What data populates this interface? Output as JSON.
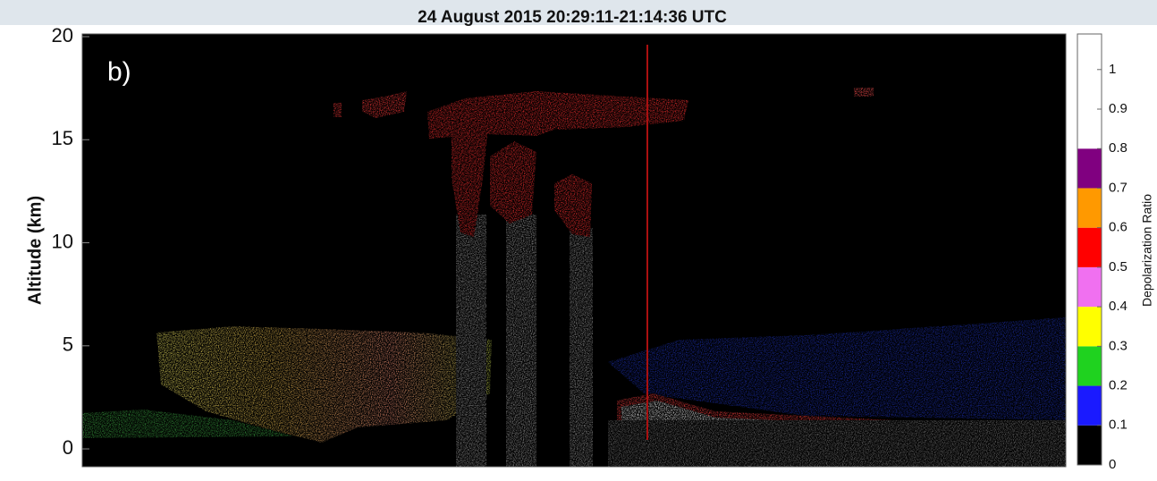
{
  "chart_data": {
    "type": "curtain",
    "title": "24 August 2015 20:29:11-21:14:36 UTC",
    "panel_label": "b)",
    "ylabel": "Altitude (km)",
    "ylim": [
      -0.8,
      20
    ],
    "yticks": [
      0,
      5,
      10,
      15,
      20
    ],
    "colorbar": {
      "label": "Depolarization Ratio",
      "clim": [
        0,
        1.09
      ],
      "ticks": [
        0,
        0.1,
        0.2,
        0.3,
        0.4,
        0.5,
        0.6,
        0.7,
        0.8,
        0.9,
        1
      ],
      "bounds": [
        0,
        0.1,
        0.2,
        0.3,
        0.4,
        0.5,
        0.6,
        0.7,
        0.8
      ],
      "colors": [
        "#000000",
        "#1a1aff",
        "#1fd21f",
        "#ffff00",
        "#f070f0",
        "#ff0000",
        "#ff9900",
        "#800080",
        "#ffffff"
      ]
    }
  }
}
